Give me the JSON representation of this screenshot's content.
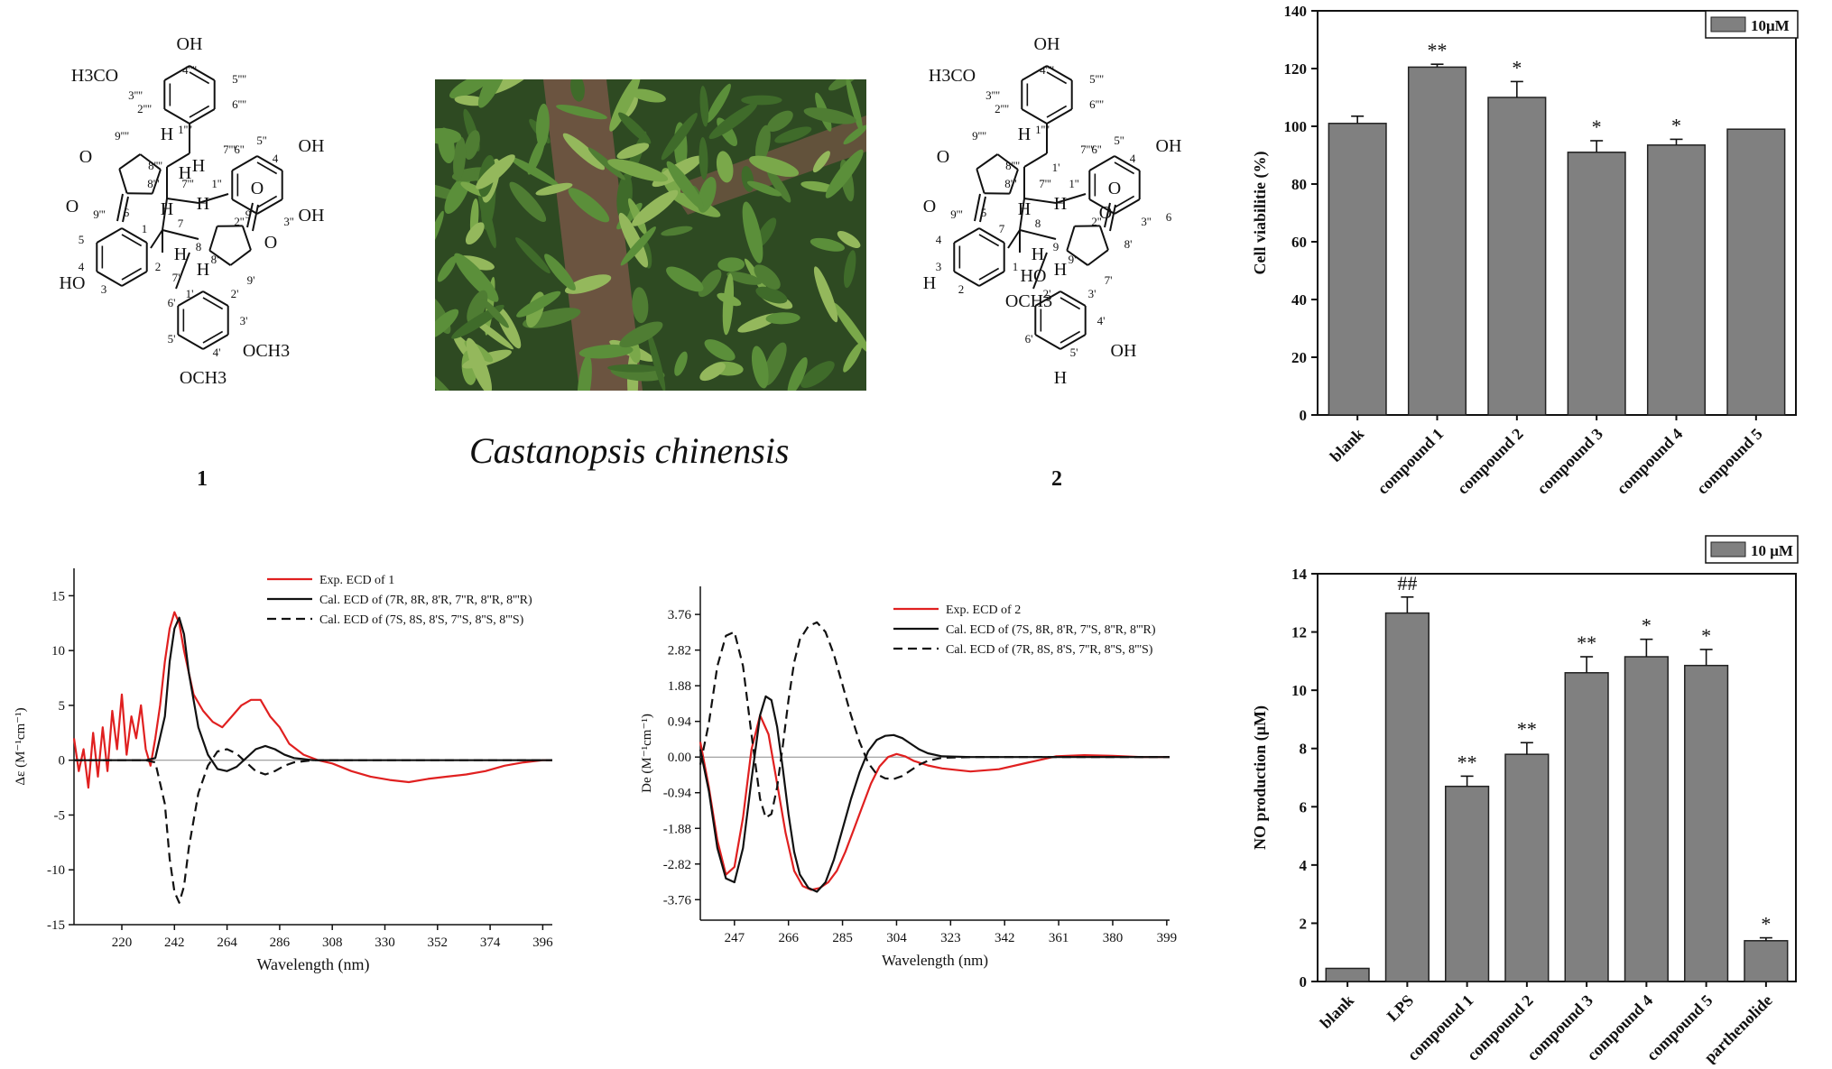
{
  "figure": {
    "plant_name": "Castanopsis chinensis",
    "compound_1_label": "1",
    "compound_2_label": "2"
  },
  "structure_1": {
    "atoms": [
      "OH",
      "H3CO",
      "3''''",
      "4''''",
      "5''''",
      "6''''",
      "2''''",
      "1''''",
      "9''''",
      "7''''",
      "8''''",
      "H",
      "O",
      "O",
      "9'''",
      "8'''",
      "7'''",
      "1''",
      "2''",
      "3''",
      "4",
      "5''",
      "6''",
      "OH",
      "OH",
      "6",
      "5",
      "4",
      "3",
      "2",
      "1",
      "7",
      "8",
      "9",
      "O",
      "O",
      "8'",
      "9'",
      "7'",
      "HO",
      "H",
      "H",
      "H",
      "H",
      "1'",
      "2'",
      "3'",
      "4'",
      "5'",
      "6'",
      "OCH3",
      "OCH3",
      "H",
      "H"
    ]
  },
  "structure_2": {
    "atoms": [
      "OH",
      "H3CO",
      "3''''",
      "4''''",
      "5''''",
      "6''''",
      "2''''",
      "1''''",
      "9''''",
      "7''''",
      "8''''",
      "H",
      "O",
      "O",
      "9'''",
      "8'''",
      "7'''",
      "1''",
      "2''",
      "3''",
      "4",
      "5''",
      "6''",
      "OH",
      "6",
      "5",
      "4",
      "3",
      "2",
      "1",
      "7",
      "8",
      "9",
      "O",
      "O",
      "8'",
      "9'",
      "7'",
      "HO",
      "H",
      "H",
      "H",
      "H",
      "1'",
      "2'",
      "3'",
      "4'",
      "5'",
      "6'",
      "OCH3",
      "OH",
      "H",
      "H"
    ]
  },
  "colors": {
    "bar_fill": "#808080",
    "exp_line": "#e02020",
    "calc_line": "#111111",
    "photo_dark": "#2e4a22",
    "photo_leaf": "#5b8f3a",
    "photo_bark": "#6b5440"
  },
  "chart_data": [
    {
      "type": "bar",
      "ylabel": "Cell viabilitie (%)",
      "ylim": [
        0,
        140
      ],
      "yticks": [
        0,
        20,
        40,
        60,
        80,
        100,
        120,
        140
      ],
      "categories": [
        "blank",
        "compound 1",
        "compound 2",
        "compound 3",
        "compound 4",
        "compound 5"
      ],
      "series": [
        {
          "name": "10μM",
          "values": [
            101,
            120.5,
            110,
            91,
            93.5,
            99
          ],
          "errors": [
            2.5,
            1,
            5.5,
            4,
            2,
            0
          ]
        }
      ],
      "annotations": [
        "",
        "**",
        "*",
        "*",
        "*",
        ""
      ],
      "legend": "top-right"
    },
    {
      "type": "bar",
      "ylabel": "NO production (μM)",
      "ylim": [
        0,
        14
      ],
      "yticks": [
        0,
        2,
        4,
        6,
        8,
        10,
        12,
        14
      ],
      "categories": [
        "blank",
        "LPS",
        "compound 1",
        "compound 2",
        "compound 3",
        "compound 4",
        "compound 5",
        "parthenolide"
      ],
      "series": [
        {
          "name": "10 μM",
          "values": [
            0.45,
            12.65,
            6.7,
            7.8,
            10.6,
            11.15,
            10.85,
            1.4
          ],
          "errors": [
            0,
            0.55,
            0.35,
            0.4,
            0.55,
            0.6,
            0.55,
            0.1
          ]
        }
      ],
      "annotations": [
        "",
        "##",
        "**",
        "**",
        "**",
        "*",
        "*",
        "*"
      ],
      "legend": "top-right"
    },
    {
      "type": "line",
      "xlabel": "Wavelength (nm)",
      "ylabel": "Δε (M⁻¹cm⁻¹)",
      "xlim": [
        200,
        400
      ],
      "ylim": [
        -15,
        17.5
      ],
      "xticks": [
        220,
        242,
        264,
        286,
        308,
        330,
        352,
        374,
        396
      ],
      "yticks": [
        -15,
        -10,
        -5,
        0,
        5,
        10,
        15
      ],
      "legend": "top-right",
      "series": [
        {
          "name": "Exp. ECD of 1",
          "style": "exp",
          "x": [
            200,
            202,
            204,
            206,
            208,
            210,
            212,
            214,
            216,
            218,
            220,
            222,
            224,
            226,
            228,
            230,
            232,
            234,
            236,
            238,
            240,
            242,
            244,
            246,
            248,
            250,
            254,
            258,
            262,
            266,
            270,
            274,
            278,
            282,
            286,
            290,
            296,
            302,
            308,
            316,
            324,
            332,
            340,
            348,
            356,
            364,
            372,
            380,
            388,
            396,
            400
          ],
          "y": [
            2,
            -1,
            1,
            -2.5,
            2.5,
            -1.5,
            3,
            -1,
            4.5,
            1,
            6,
            0.5,
            4,
            2,
            5,
            1,
            -0.5,
            2,
            5,
            9,
            12,
            13.5,
            12.5,
            10,
            8,
            6,
            4.5,
            3.5,
            3,
            4,
            5,
            5.5,
            5.5,
            4,
            3,
            1.5,
            0.5,
            0,
            -0.3,
            -1,
            -1.5,
            -1.8,
            -2,
            -1.7,
            -1.5,
            -1.3,
            -1,
            -0.5,
            -0.2,
            0,
            0
          ]
        },
        {
          "name": "Cal. ECD of (7R, 8R, 8'R, 7''R, 8''R, 8'''R)",
          "style": "solid",
          "x": [
            200,
            210,
            220,
            226,
            230,
            234,
            238,
            240,
            242,
            244,
            246,
            248,
            252,
            256,
            260,
            264,
            268,
            272,
            276,
            280,
            284,
            288,
            292,
            296,
            300,
            310,
            320,
            340,
            370,
            400
          ],
          "y": [
            0,
            0,
            0,
            0,
            0,
            0.2,
            4,
            9,
            12,
            13,
            11.5,
            8,
            3,
            0.5,
            -0.8,
            -1,
            -0.6,
            0.2,
            1,
            1.3,
            1,
            0.5,
            0.2,
            0.1,
            0,
            0,
            0,
            0,
            0,
            0
          ]
        },
        {
          "name": "Cal. ECD of (7S, 8S, 8'S, 7''S, 8''S, 8'''S)",
          "style": "dashed",
          "x": [
            200,
            210,
            220,
            226,
            230,
            234,
            238,
            240,
            242,
            244,
            246,
            248,
            252,
            256,
            260,
            264,
            268,
            272,
            276,
            280,
            284,
            288,
            292,
            296,
            300,
            310,
            320,
            340,
            370,
            400
          ],
          "y": [
            0,
            0,
            0,
            0,
            0,
            -0.2,
            -4,
            -9,
            -12,
            -13,
            -11.5,
            -8,
            -3,
            -0.5,
            0.8,
            1,
            0.6,
            -0.2,
            -1,
            -1.3,
            -1,
            -0.5,
            -0.2,
            -0.1,
            0,
            0,
            0,
            0,
            0,
            0
          ]
        }
      ]
    },
    {
      "type": "line",
      "xlabel": "Wavelength (nm)",
      "ylabel": "De (M⁻¹cm⁻¹)",
      "xlim": [
        235,
        400
      ],
      "ylim": [
        -4.3,
        4.5
      ],
      "xticks": [
        247,
        266,
        285,
        304,
        323,
        342,
        361,
        380,
        399
      ],
      "yticks": [
        -3.76,
        -2.82,
        -1.88,
        -0.94,
        0.0,
        0.94,
        1.88,
        2.82,
        3.76
      ],
      "ytick_labels": [
        "-3.76",
        "-2.82",
        "-1.88",
        "-0.94",
        "0.00",
        "0.94",
        "1.88",
        "2.82",
        "3.76"
      ],
      "legend": "top-right",
      "series": [
        {
          "name": "Exp. ECD of 2",
          "style": "exp",
          "x": [
            235,
            238,
            241,
            244,
            247,
            250,
            253,
            256,
            259,
            262,
            265,
            268,
            271,
            274,
            277,
            280,
            283,
            286,
            289,
            292,
            295,
            298,
            301,
            304,
            307,
            310,
            315,
            320,
            330,
            340,
            350,
            360,
            370,
            380,
            390,
            400
          ],
          "y": [
            0.4,
            -0.8,
            -2.2,
            -3.1,
            -2.9,
            -1.6,
            0.2,
            1.1,
            0.6,
            -0.7,
            -2.0,
            -3.0,
            -3.4,
            -3.5,
            -3.45,
            -3.3,
            -3.0,
            -2.5,
            -1.9,
            -1.3,
            -0.7,
            -0.25,
            0.0,
            0.08,
            0.02,
            -0.1,
            -0.22,
            -0.3,
            -0.38,
            -0.32,
            -0.15,
            0.02,
            0.05,
            0.03,
            0.0,
            0.0
          ]
        },
        {
          "name": "Cal. ECD of (7S, 8R, 8'R, 7''S, 8''R, 8'''R)",
          "style": "solid",
          "x": [
            235,
            238,
            241,
            244,
            247,
            250,
            253,
            256,
            258,
            260,
            262,
            264,
            266,
            268,
            270,
            273,
            276,
            279,
            282,
            285,
            288,
            291,
            294,
            297,
            300,
            303,
            306,
            309,
            312,
            315,
            320,
            330,
            340,
            350,
            360,
            380,
            400
          ],
          "y": [
            0.2,
            -0.9,
            -2.4,
            -3.2,
            -3.3,
            -2.4,
            -0.6,
            1.1,
            1.6,
            1.5,
            0.8,
            -0.3,
            -1.5,
            -2.5,
            -3.1,
            -3.45,
            -3.55,
            -3.3,
            -2.7,
            -1.9,
            -1.1,
            -0.4,
            0.15,
            0.45,
            0.56,
            0.58,
            0.5,
            0.35,
            0.2,
            0.1,
            0.02,
            0,
            0,
            0,
            0,
            0,
            0
          ]
        },
        {
          "name": "Cal. ECD of (7R, 8S, 8'S, 7''R, 8''S, 8'''S)",
          "style": "dashed",
          "x": [
            235,
            238,
            241,
            244,
            247,
            250,
            253,
            256,
            258,
            260,
            262,
            264,
            266,
            268,
            270,
            273,
            276,
            279,
            282,
            285,
            288,
            291,
            294,
            297,
            300,
            303,
            306,
            309,
            312,
            315,
            320,
            330,
            340,
            350,
            360,
            380,
            400
          ],
          "y": [
            -0.2,
            0.9,
            2.4,
            3.2,
            3.3,
            2.4,
            0.6,
            -1.1,
            -1.6,
            -1.5,
            -0.8,
            0.3,
            1.5,
            2.5,
            3.1,
            3.45,
            3.55,
            3.3,
            2.7,
            1.9,
            1.1,
            0.4,
            -0.15,
            -0.45,
            -0.56,
            -0.58,
            -0.5,
            -0.35,
            -0.2,
            -0.1,
            -0.02,
            0,
            0,
            0,
            0,
            0,
            0
          ]
        }
      ]
    }
  ]
}
